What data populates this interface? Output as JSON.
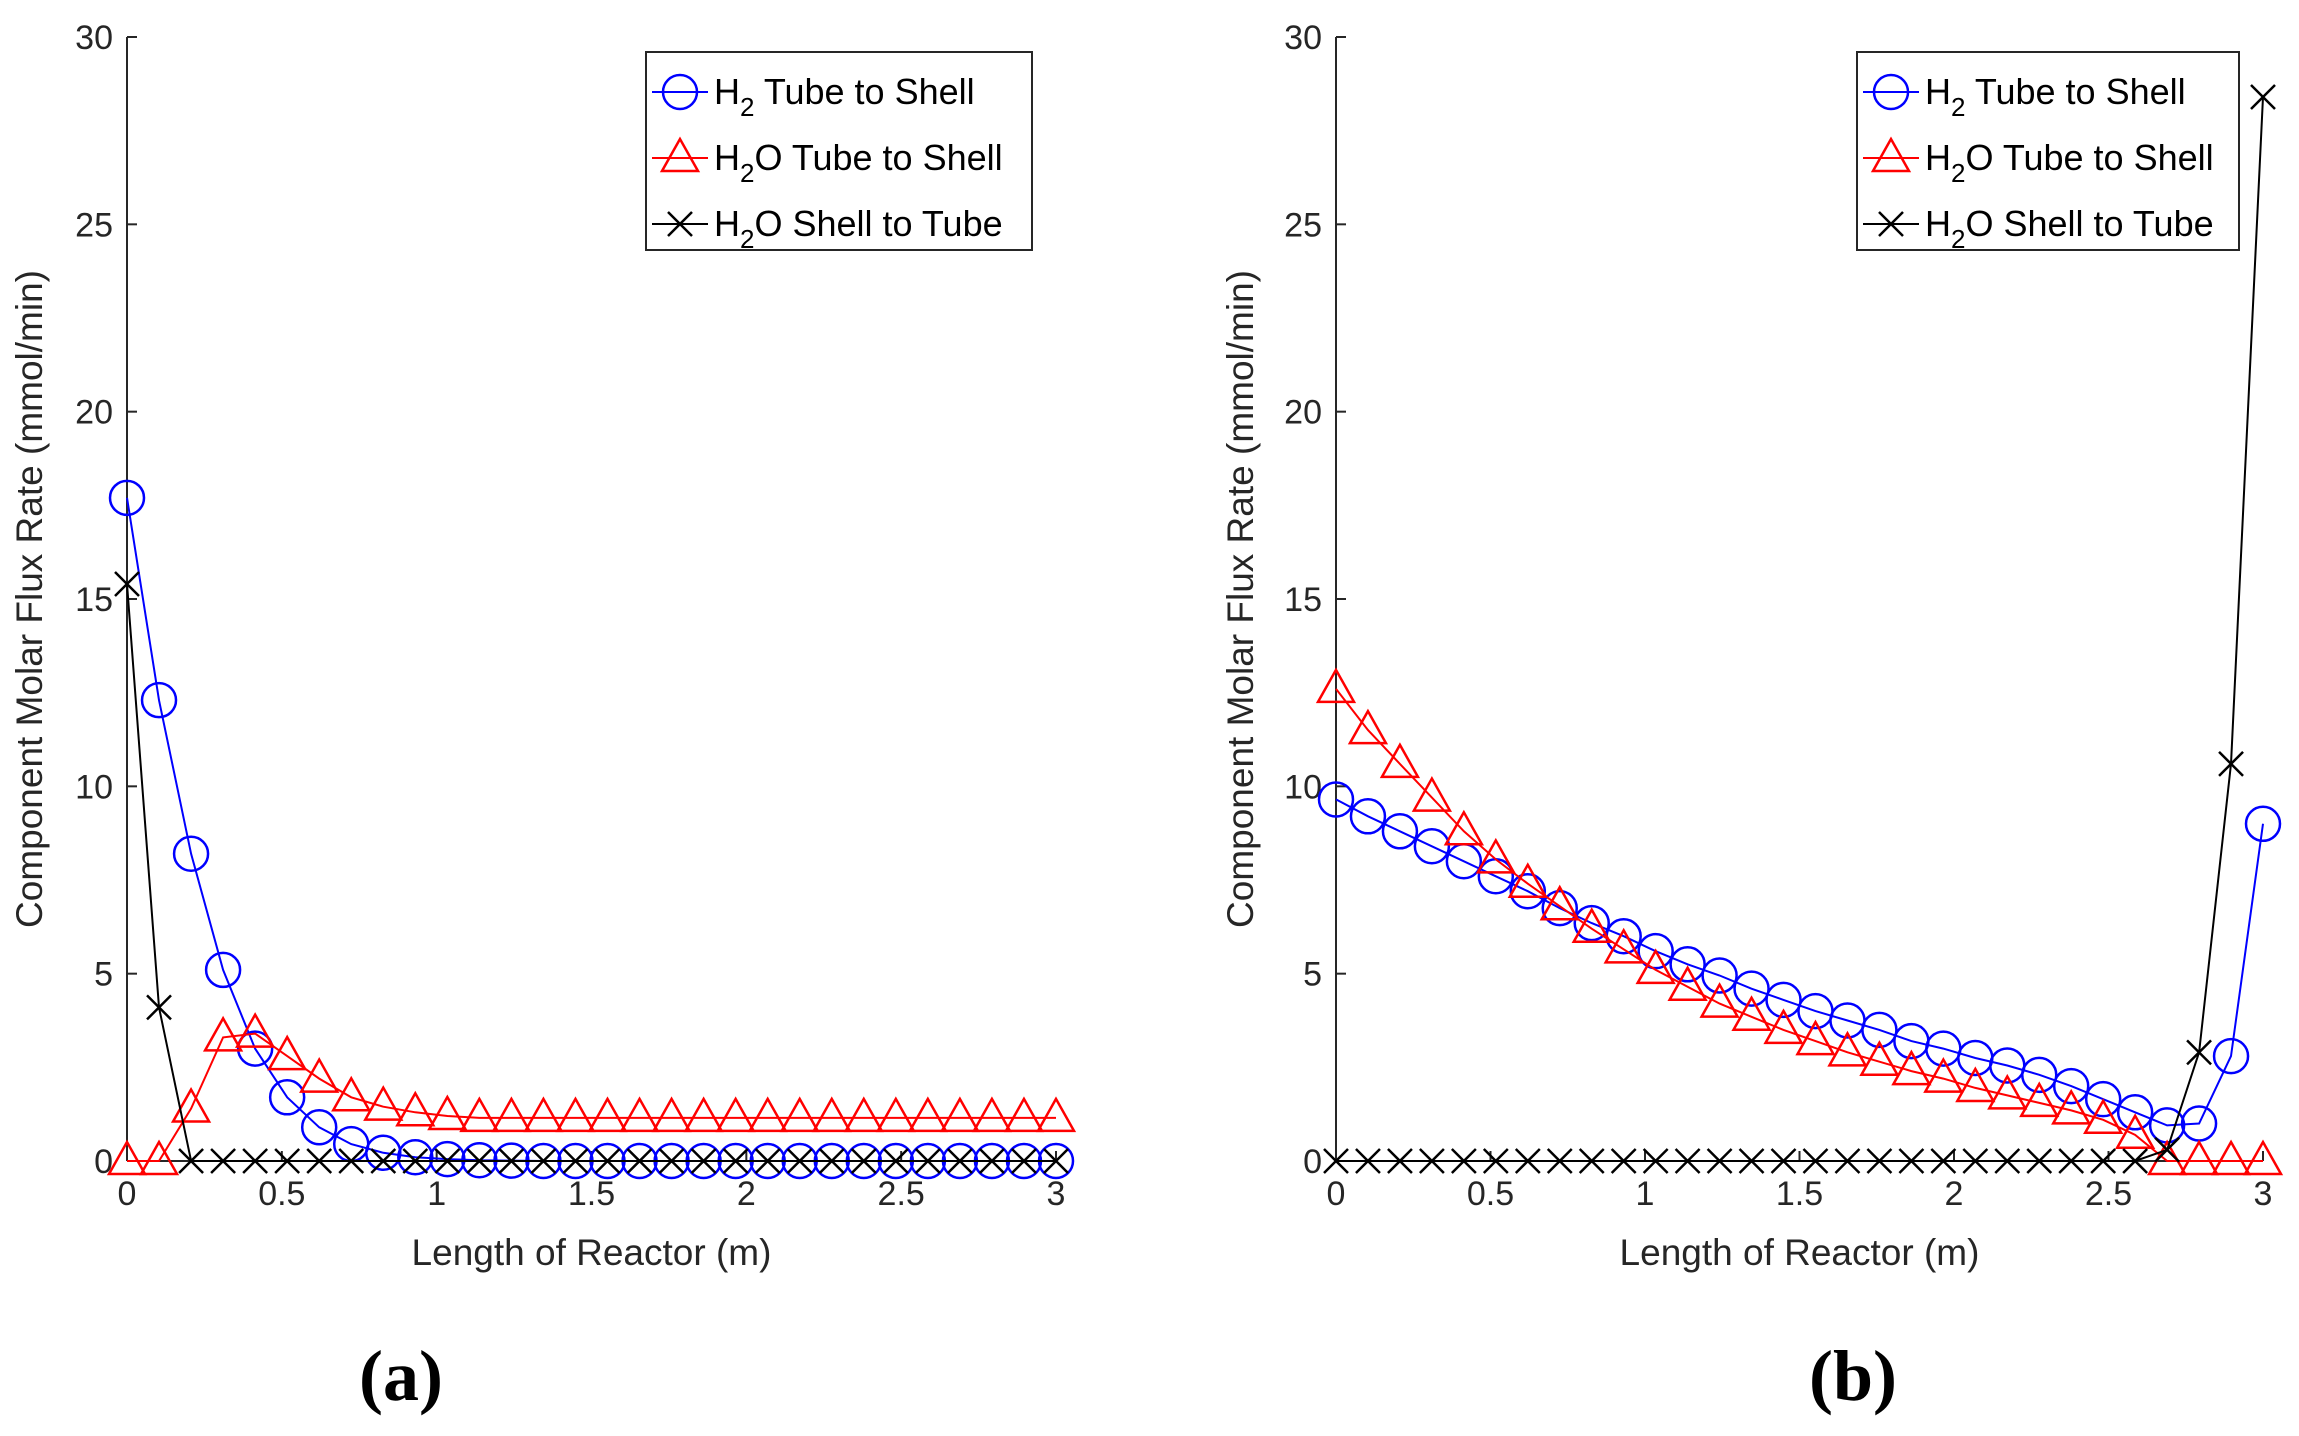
{
  "chart_data": [
    {
      "type": "line",
      "panel_label": "(a)",
      "xlabel": "Length of Reactor (m)",
      "ylabel": "Component Molar Flux Rate (mmol/min)",
      "xlim": [
        0,
        3
      ],
      "ylim": [
        0,
        30
      ],
      "xticks": [
        0,
        0.5,
        1,
        1.5,
        2,
        2.5,
        3
      ],
      "xtick_labels": [
        "0",
        "0.5",
        "1",
        "1.5",
        "2",
        "2.5",
        "3"
      ],
      "yticks": [
        0,
        5,
        10,
        15,
        20,
        25,
        30
      ],
      "ytick_labels": [
        "0",
        "5",
        "10",
        "15",
        "20",
        "25",
        "30"
      ],
      "legend_position": "top-right",
      "x": [
        0,
        0.1034,
        0.2069,
        0.3103,
        0.4138,
        0.5172,
        0.6207,
        0.7241,
        0.8276,
        0.931,
        1.0345,
        1.1379,
        1.2414,
        1.3448,
        1.4483,
        1.5517,
        1.6552,
        1.7586,
        1.8621,
        1.9655,
        2.069,
        2.1724,
        2.2759,
        2.3793,
        2.4828,
        2.5862,
        2.6897,
        2.7931,
        2.8966,
        3.0
      ],
      "series": [
        {
          "name": "H2 Tube to Shell",
          "label_main": "H",
          "label_sub": "2",
          "label_rest": " Tube to Shell",
          "color": "#0000ff",
          "marker": "circle",
          "values": [
            17.7,
            12.3,
            8.2,
            5.1,
            3.0,
            1.7,
            0.9,
            0.45,
            0.22,
            0.1,
            0.05,
            0.02,
            0.01,
            0,
            0,
            0,
            0,
            0,
            0,
            0,
            0,
            0,
            0,
            0,
            0,
            0,
            0,
            0,
            0,
            0
          ]
        },
        {
          "name": "H2O Tube to Shell",
          "label_main": "H",
          "label_sub": "2",
          "label_rest": "O Tube to Shell",
          "color": "#ff0000",
          "marker": "triangle",
          "values": [
            0,
            0,
            1.4,
            3.3,
            3.4,
            2.8,
            2.2,
            1.7,
            1.45,
            1.3,
            1.2,
            1.15,
            1.15,
            1.15,
            1.15,
            1.15,
            1.15,
            1.15,
            1.15,
            1.15,
            1.15,
            1.15,
            1.15,
            1.15,
            1.15,
            1.15,
            1.15,
            1.15,
            1.15,
            1.15
          ]
        },
        {
          "name": "H2O Shell to Tube",
          "label_main": "H",
          "label_sub": "2",
          "label_rest": "O Shell to Tube",
          "color": "#000000",
          "marker": "x",
          "values": [
            15.4,
            4.1,
            0,
            0,
            0,
            0,
            0,
            0,
            0,
            0,
            0,
            0,
            0,
            0,
            0,
            0,
            0,
            0,
            0,
            0,
            0,
            0,
            0,
            0,
            0,
            0,
            0,
            0,
            0,
            0
          ]
        }
      ]
    },
    {
      "type": "line",
      "panel_label": "(b)",
      "xlabel": "Length of Reactor (m)",
      "ylabel": "Component Molar Flux Rate (mmol/min)",
      "xlim": [
        0,
        3
      ],
      "ylim": [
        0,
        30
      ],
      "xticks": [
        0,
        0.5,
        1,
        1.5,
        2,
        2.5,
        3
      ],
      "xtick_labels": [
        "0",
        "0.5",
        "1",
        "1.5",
        "2",
        "2.5",
        "3"
      ],
      "yticks": [
        0,
        5,
        10,
        15,
        20,
        25,
        30
      ],
      "ytick_labels": [
        "0",
        "5",
        "10",
        "15",
        "20",
        "25",
        "30"
      ],
      "legend_position": "top-right",
      "x": [
        0,
        0.1034,
        0.2069,
        0.3103,
        0.4138,
        0.5172,
        0.6207,
        0.7241,
        0.8276,
        0.931,
        1.0345,
        1.1379,
        1.2414,
        1.3448,
        1.4483,
        1.5517,
        1.6552,
        1.7586,
        1.8621,
        1.9655,
        2.069,
        2.1724,
        2.2759,
        2.3793,
        2.4828,
        2.5862,
        2.6897,
        2.7931,
        2.8966,
        3.0
      ],
      "series": [
        {
          "name": "H2 Tube to Shell",
          "label_main": "H",
          "label_sub": "2",
          "label_rest": " Tube to Shell",
          "color": "#0000ff",
          "marker": "circle",
          "values": [
            9.65,
            9.2,
            8.8,
            8.4,
            8.0,
            7.6,
            7.2,
            6.75,
            6.35,
            6.0,
            5.6,
            5.25,
            4.95,
            4.6,
            4.3,
            4.0,
            3.75,
            3.5,
            3.2,
            3.0,
            2.75,
            2.55,
            2.3,
            2.0,
            1.65,
            1.3,
            0.95,
            1.0,
            2.8,
            9.0
          ]
        },
        {
          "name": "H2O Tube to Shell",
          "label_main": "H",
          "label_sub": "2",
          "label_rest": "O Tube to Shell",
          "color": "#ff0000",
          "marker": "triangle",
          "values": [
            12.6,
            11.5,
            10.6,
            9.7,
            8.8,
            8.05,
            7.4,
            6.8,
            6.2,
            5.65,
            5.1,
            4.65,
            4.2,
            3.85,
            3.5,
            3.2,
            2.9,
            2.65,
            2.4,
            2.2,
            1.95,
            1.75,
            1.55,
            1.35,
            1.1,
            0.7,
            0,
            0,
            0,
            0
          ]
        },
        {
          "name": "H2O Shell to Tube",
          "label_main": "H",
          "label_sub": "2",
          "label_rest": "O Shell to Tube",
          "color": "#000000",
          "marker": "x",
          "values": [
            0,
            0,
            0,
            0,
            0,
            0,
            0,
            0,
            0,
            0,
            0,
            0,
            0,
            0,
            0,
            0,
            0,
            0,
            0,
            0,
            0,
            0,
            0,
            0,
            0,
            0,
            0.3,
            2.9,
            10.6,
            28.4
          ]
        }
      ]
    }
  ]
}
